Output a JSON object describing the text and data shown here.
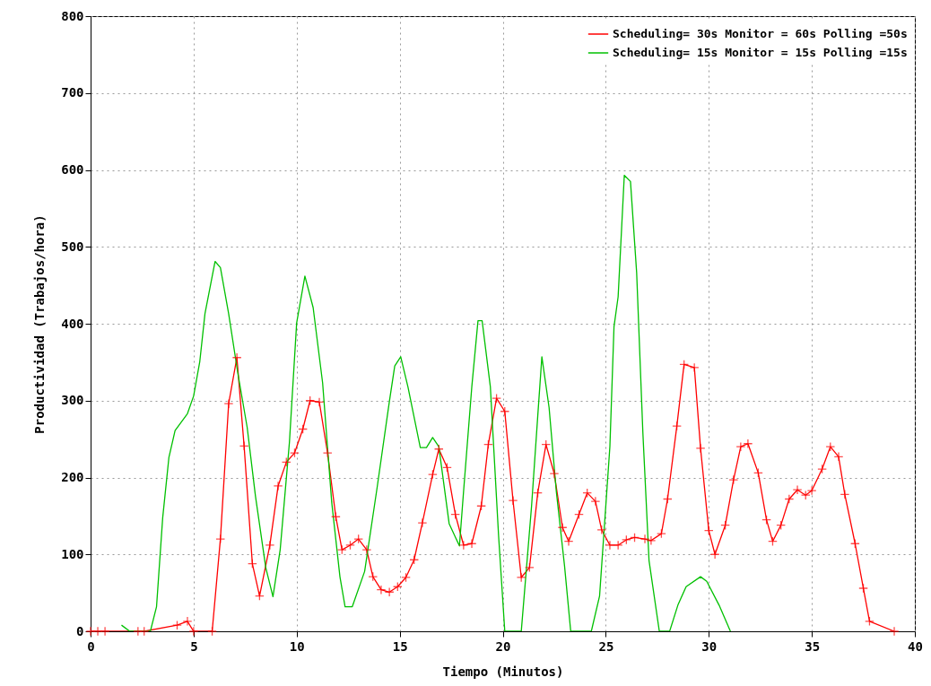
{
  "chart_data": {
    "type": "line",
    "xlabel": "Tiempo (Minutos)",
    "ylabel": "Productividad (Trabajos/hora)",
    "xlim": [
      0,
      40
    ],
    "xticks": [
      0,
      5,
      10,
      15,
      20,
      25,
      30,
      35,
      40
    ],
    "ylim": [
      0,
      800
    ],
    "yticks": [
      0,
      100,
      200,
      300,
      400,
      500,
      600,
      700,
      800
    ],
    "grid": true,
    "legend": "top right",
    "line_style": "solid",
    "series": [
      {
        "name": "Scheduling= 30s Monitor = 60s Polling =50s",
        "color": "#ff0000",
        "marker": "cross",
        "x": [
          0,
          0.35,
          0.7,
          2.3,
          2.6,
          4.2,
          4.7,
          5.0,
          5.9,
          6.3,
          6.7,
          7.1,
          7.45,
          7.85,
          8.2,
          8.7,
          9.1,
          9.5,
          9.9,
          10.3,
          10.65,
          11.1,
          11.5,
          11.9,
          12.2,
          12.6,
          13.0,
          13.4,
          13.7,
          14.1,
          14.5,
          14.9,
          15.3,
          15.7,
          16.1,
          16.6,
          16.9,
          17.3,
          17.7,
          18.1,
          18.5,
          18.96,
          19.3,
          19.7,
          20.1,
          20.5,
          20.9,
          21.3,
          21.7,
          22.1,
          22.5,
          22.9,
          23.2,
          23.7,
          24.1,
          24.5,
          24.8,
          25.2,
          25.6,
          26.0,
          26.4,
          26.9,
          27.2,
          27.7,
          28.0,
          28.45,
          28.8,
          29.3,
          29.6,
          30.0,
          30.3,
          30.8,
          31.2,
          31.55,
          31.9,
          32.4,
          32.8,
          33.1,
          33.5,
          33.9,
          34.3,
          34.7,
          35.0,
          35.5,
          35.9,
          36.3,
          36.6,
          37.1,
          37.5,
          37.8,
          39.0
        ],
        "values": [
          0,
          0,
          0,
          0,
          0,
          8,
          13,
          0,
          0,
          120,
          296,
          356,
          241,
          88,
          46,
          112,
          189,
          220,
          232,
          263,
          300,
          298,
          232,
          149,
          106,
          112,
          120,
          106,
          71,
          54,
          51,
          58,
          70,
          93,
          141,
          204,
          237,
          213,
          152,
          112,
          114,
          163,
          243,
          303,
          286,
          170,
          70,
          83,
          180,
          243,
          205,
          135,
          117,
          152,
          180,
          169,
          132,
          112,
          112,
          119,
          122,
          120,
          118,
          127,
          172,
          267,
          347,
          343,
          238,
          131,
          100,
          138,
          197,
          240,
          244,
          206,
          145,
          117,
          138,
          172,
          184,
          177,
          183,
          211,
          240,
          227,
          178,
          114,
          56,
          13,
          0
        ]
      },
      {
        "name": "Scheduling= 15s Monitor = 15s Polling =15s",
        "color": "#00c000",
        "x": [
          1.5,
          1.9,
          2.9,
          3.2,
          3.5,
          3.8,
          4.1,
          4.7,
          5.0,
          5.3,
          5.55,
          6.04,
          6.3,
          6.7,
          7.15,
          7.6,
          8.0,
          8.5,
          8.85,
          9.2,
          9.65,
          10.0,
          10.4,
          10.8,
          11.26,
          11.7,
          12.1,
          12.35,
          12.7,
          13.3,
          13.9,
          14.5,
          14.76,
          15.05,
          15.4,
          16.0,
          16.3,
          16.6,
          16.9,
          17.4,
          17.9,
          18.1,
          18.5,
          18.8,
          19.0,
          19.4,
          19.8,
          20.1,
          20.9,
          21.4,
          21.7,
          21.9,
          22.25,
          22.6,
          23.0,
          23.3,
          24.3,
          24.7,
          25.2,
          25.4,
          25.6,
          25.9,
          26.2,
          26.5,
          26.8,
          27.1,
          27.6,
          28.1,
          28.5,
          28.9,
          29.6,
          29.9,
          30.5,
          31.05
        ],
        "values": [
          8,
          0,
          0,
          32,
          148,
          226,
          261,
          283,
          306,
          351,
          413,
          481,
          473,
          413,
          335,
          265,
          176,
          83,
          45,
          106,
          246,
          401,
          462,
          421,
          323,
          168,
          71,
          32,
          32,
          78,
          186,
          299,
          345,
          357,
          318,
          239,
          239,
          252,
          240,
          140,
          111,
          182,
          318,
          404,
          404,
          318,
          124,
          0,
          0,
          163,
          280,
          357,
          291,
          182,
          85,
          0,
          0,
          46,
          240,
          396,
          435,
          593,
          585,
          466,
          259,
          92,
          0,
          0,
          34,
          58,
          71,
          65,
          34,
          0
        ]
      }
    ]
  }
}
